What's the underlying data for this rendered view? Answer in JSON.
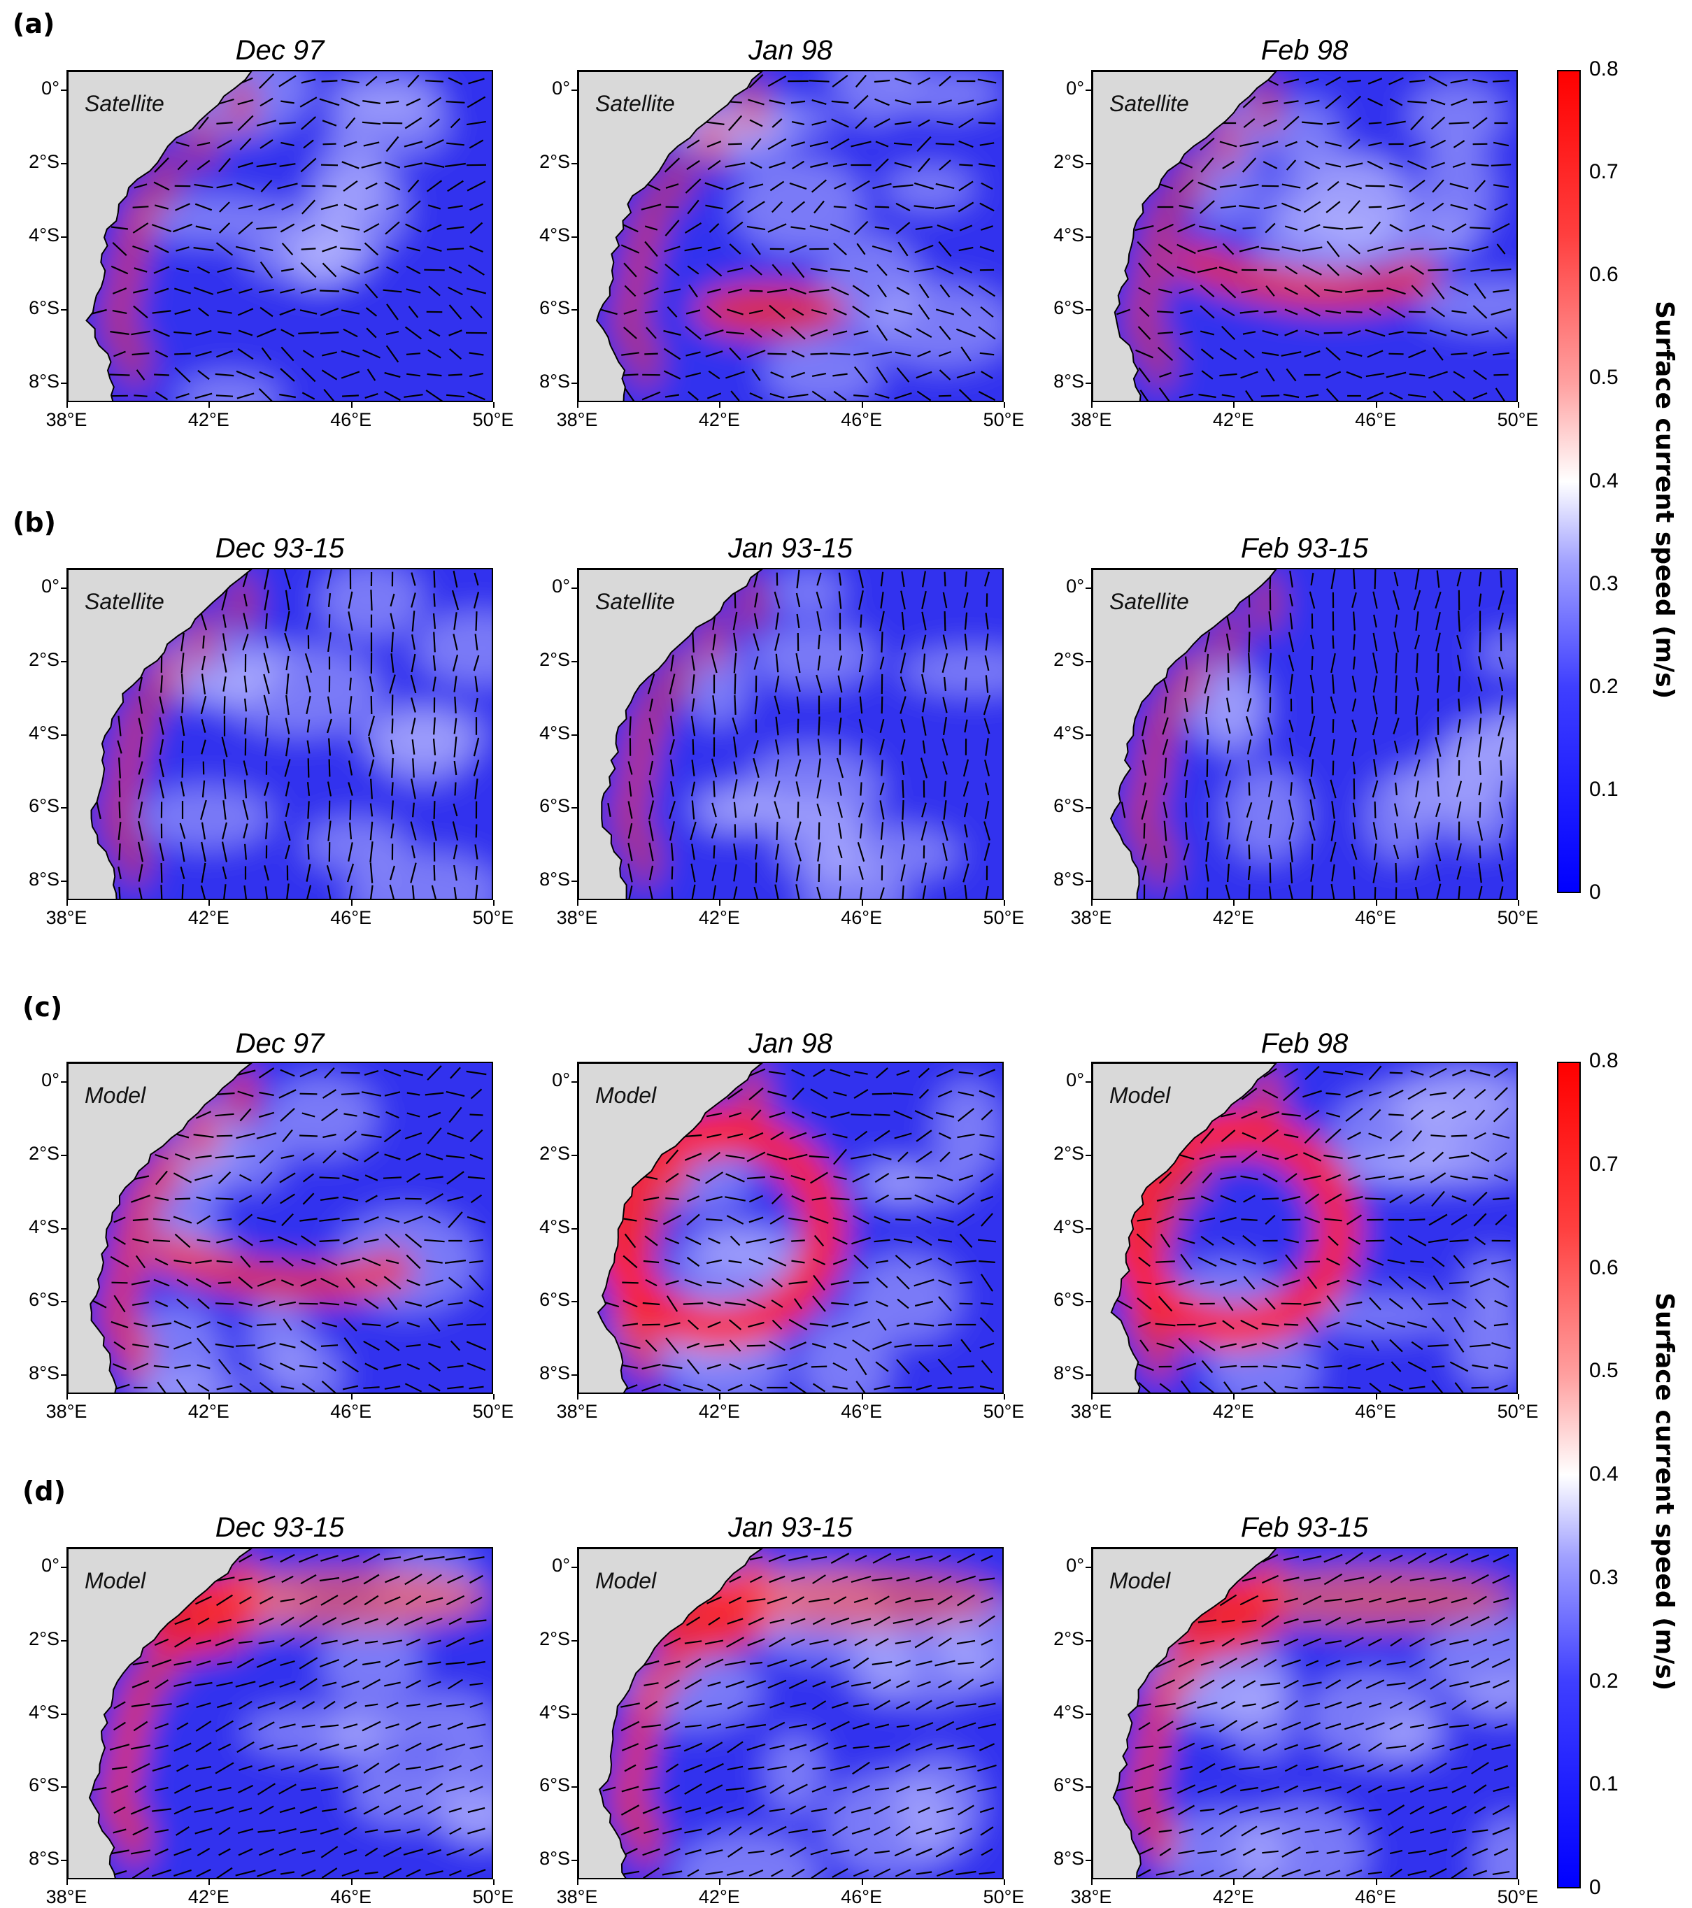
{
  "groups": [
    {
      "label": "(a)",
      "source": "Satellite",
      "titles": [
        "Dec 97",
        "Jan 98",
        "Feb 98"
      ]
    },
    {
      "label": "(b)",
      "source": "Satellite",
      "titles": [
        "Dec 93-15",
        "Jan 93-15",
        "Feb 93-15"
      ]
    },
    {
      "label": "(c)",
      "source": "Model",
      "titles": [
        "Dec 97",
        "Jan 98",
        "Feb 98"
      ]
    },
    {
      "label": "(d)",
      "source": "Model",
      "titles": [
        "Dec 93-15",
        "Jan 93-15",
        "Feb 93-15"
      ]
    }
  ],
  "axes": {
    "y_ticks": [
      "0°",
      "2°S",
      "4°S",
      "6°S",
      "8°S"
    ],
    "x_ticks": [
      "38°E",
      "42°E",
      "46°E",
      "50°E"
    ]
  },
  "colorbar": {
    "label": "Surface current speed (m/s)",
    "ticks": [
      "0.8",
      "0.7",
      "0.6",
      "0.5",
      "0.4",
      "0.3",
      "0.2",
      "0.1",
      "0"
    ],
    "min": 0,
    "max": 0.8,
    "colormap": [
      "#0000ff",
      "#ffffff",
      "#ff0000"
    ]
  },
  "colors": {
    "land": "#d9d9d9",
    "ocean_low": "#3a3af2",
    "fast_current": "#ff3030"
  }
}
